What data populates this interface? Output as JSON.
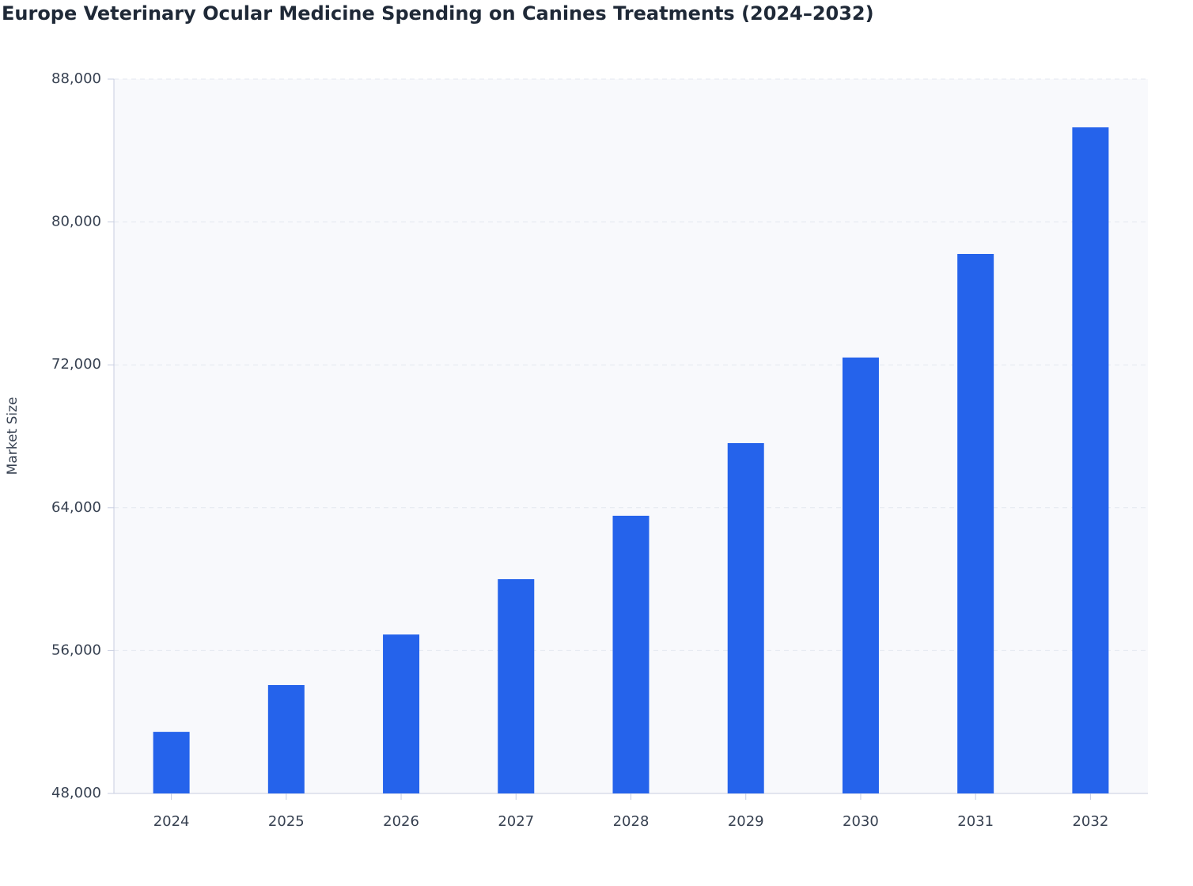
{
  "chart_data": {
    "type": "bar",
    "title": "Europe Veterinary Ocular Medicine Spending on Canines Treatments (2024–2032)",
    "y_label": "Market Size",
    "categories": [
      "2024",
      "2025",
      "2026",
      "2027",
      "2028",
      "2029",
      "2030",
      "2031",
      "2032"
    ],
    "values": [
      51450,
      54070,
      56900,
      60000,
      63550,
      67620,
      72410,
      78210,
      85300
    ],
    "color": "#2563eb",
    "ylim": [
      48000,
      88000
    ],
    "yticks": [
      {
        "value": 48000,
        "label": "48,000"
      },
      {
        "value": 56000,
        "label": "56,000"
      },
      {
        "value": 64000,
        "label": "64,000"
      },
      {
        "value": 72000,
        "label": "72,000"
      },
      {
        "value": 80000,
        "label": "80,000"
      },
      {
        "value": 88000,
        "label": "88,000"
      }
    ],
    "grid": true
  }
}
